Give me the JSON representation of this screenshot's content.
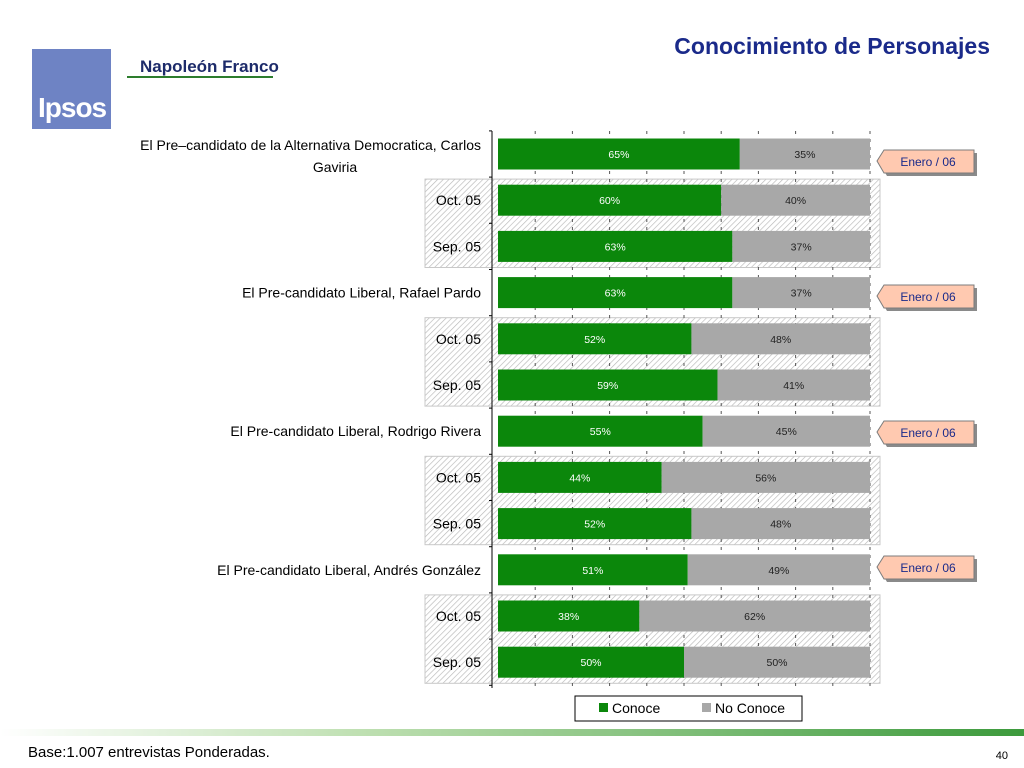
{
  "header": {
    "title": "Conocimiento de Personajes",
    "brand": "Napoleón Franco",
    "logo_text": "Ipsos"
  },
  "footer": {
    "note": "Base:1.007 entrevistas Ponderadas.",
    "page_number": "40"
  },
  "colors": {
    "conoce": "#0b870b",
    "no_conoce": "#a8a8a8",
    "title": "#1a2a8a",
    "badge": "#ffc9b0"
  },
  "chart_data": {
    "type": "bar",
    "orientation": "horizontal",
    "stacked": "100%",
    "xlim": [
      0,
      100
    ],
    "categories": [
      "El Pre–candidato de la Alternativa Democratica, Carlos Gaviria",
      "Oct. 05",
      "Sep. 05",
      "El Pre-candidato Liberal, Rafael Pardo",
      "Oct. 05",
      "Sep. 05",
      "El Pre-candidato Liberal, Rodrigo Rivera",
      "Oct. 05",
      "Sep. 05",
      "El Pre-candidato Liberal, Andrés González",
      "Oct. 05",
      "Sep. 05"
    ],
    "series": [
      {
        "name": "Conoce",
        "values": [
          65,
          60,
          63,
          63,
          52,
          59,
          55,
          44,
          52,
          51,
          38,
          50
        ]
      },
      {
        "name": "No Conoce",
        "values": [
          35,
          40,
          37,
          37,
          48,
          41,
          45,
          56,
          48,
          49,
          62,
          50
        ]
      }
    ],
    "legend": [
      "Conoce",
      "No Conoce"
    ],
    "legend_position": "bottom",
    "badges": [
      "Enero / 06",
      "Enero / 06",
      "Enero / 06",
      "Enero / 06"
    ]
  }
}
